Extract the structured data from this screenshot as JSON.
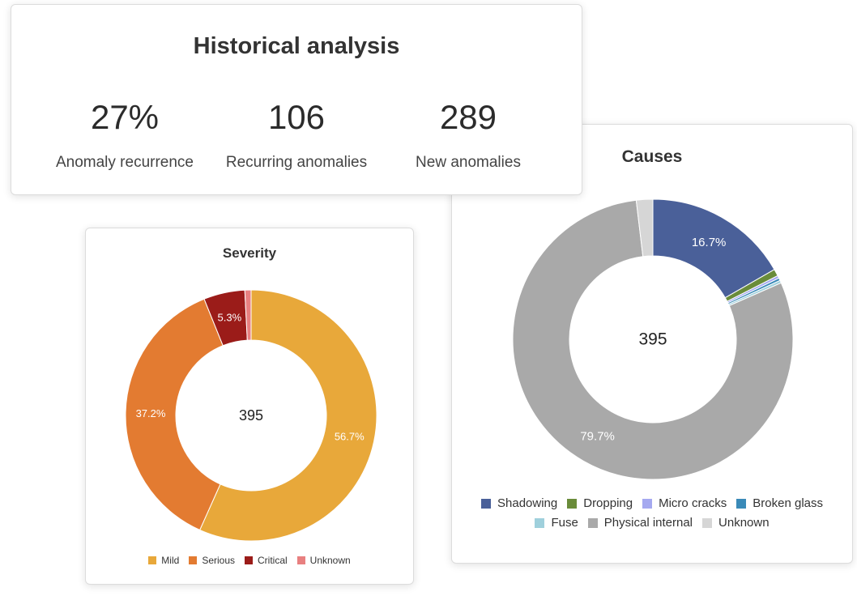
{
  "historical": {
    "title": "Historical analysis",
    "metrics": [
      {
        "value": "27%",
        "label": "Anomaly recurrence"
      },
      {
        "value": "106",
        "label": "Recurring anomalies"
      },
      {
        "value": "289",
        "label": "New anomalies"
      }
    ]
  },
  "chart_data": [
    {
      "type": "pie",
      "title": "Severity",
      "center_label": "395",
      "legend_position": "bottom",
      "slices": [
        {
          "name": "Mild",
          "value": 56.7,
          "label": "56.7%",
          "color": "#e8a83a"
        },
        {
          "name": "Serious",
          "value": 37.2,
          "label": "37.2%",
          "color": "#e37b31"
        },
        {
          "name": "Critical",
          "value": 5.3,
          "label": "5.3%",
          "color": "#9b1c19"
        },
        {
          "name": "Unknown",
          "value": 0.8,
          "label": "",
          "color": "#e88080"
        }
      ]
    },
    {
      "type": "pie",
      "title": "Causes",
      "center_label": "395",
      "legend_position": "bottom",
      "slices": [
        {
          "name": "Shadowing",
          "value": 16.7,
          "label": "16.7%",
          "color": "#4a6099"
        },
        {
          "name": "Dropping",
          "value": 0.8,
          "label": "",
          "color": "#6a8c3a"
        },
        {
          "name": "Micro cracks",
          "value": 0.3,
          "label": "",
          "color": "#a5a9f0"
        },
        {
          "name": "Broken glass",
          "value": 0.3,
          "label": "",
          "color": "#3a8ab8"
        },
        {
          "name": "Fuse",
          "value": 0.3,
          "label": "",
          "color": "#9fd0dc"
        },
        {
          "name": "Physical internal",
          "value": 79.7,
          "label": "79.7%",
          "color": "#a9a9a9"
        },
        {
          "name": "Unknown",
          "value": 1.9,
          "label": "",
          "color": "#d6d6d6"
        }
      ]
    }
  ]
}
